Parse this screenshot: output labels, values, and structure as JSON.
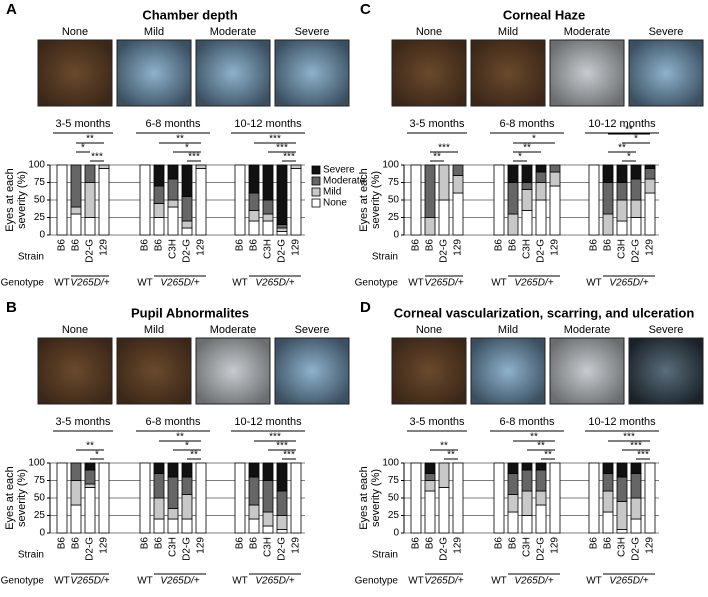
{
  "chart_data": [
    {
      "type": "stacked_bar",
      "letter": "A",
      "title": "Chamber depth",
      "photo_labels": [
        "None",
        "Mild",
        "Moderate",
        "Severe"
      ],
      "ylabel": [
        "Eyes at each",
        "severity (%)"
      ],
      "ylim": [
        0,
        100
      ],
      "yticks": [
        0,
        25,
        50,
        75,
        100
      ],
      "strain_label": "Strain",
      "genotype_label": "Genotype",
      "legend": [
        {
          "name": "Severe",
          "color": "#111111"
        },
        {
          "name": "Moderate",
          "color": "#666666"
        },
        {
          "name": "Mild",
          "color": "#c8c8c8"
        },
        {
          "name": "None",
          "color": "#ffffff"
        }
      ],
      "groups": [
        {
          "label": "3-5 months",
          "categories": [
            "B6",
            "B6",
            "D2-G",
            "129"
          ],
          "genotypes": [
            "WT",
            "V265D/+"
          ],
          "series": [
            [
              0,
              0,
              0,
              0
            ],
            [
              0,
              60,
              25,
              0
            ],
            [
              0,
              10,
              50,
              5
            ],
            [
              100,
              30,
              25,
              95
            ]
          ],
          "comparisons": [
            {
              "label": "**",
              "pair": [
                1,
                3
              ]
            },
            {
              "label": "*",
              "pair": [
                1,
                2
              ]
            },
            {
              "label": "***",
              "pair": [
                2,
                3
              ]
            }
          ]
        },
        {
          "label": "6-8 months",
          "categories": [
            "B6",
            "B6",
            "C3H",
            "D2-G",
            "129"
          ],
          "genotypes": [
            "WT",
            "V265D/+"
          ],
          "series": [
            [
              0,
              30,
              20,
              45,
              0
            ],
            [
              0,
              25,
              30,
              35,
              0
            ],
            [
              0,
              20,
              10,
              10,
              5
            ],
            [
              100,
              25,
              40,
              10,
              95
            ]
          ],
          "comparisons": [
            {
              "label": "**",
              "pair": [
                1,
                4
              ]
            },
            {
              "label": "*",
              "pair": [
                2,
                4
              ]
            },
            {
              "label": "***",
              "pair": [
                3,
                4
              ]
            }
          ]
        },
        {
          "label": "10-12 months",
          "categories": [
            "B6",
            "B6",
            "C3H",
            "D2-G",
            "129"
          ],
          "genotypes": [
            "WT",
            "V265D/+"
          ],
          "series": [
            [
              0,
              40,
              50,
              85,
              0
            ],
            [
              0,
              25,
              20,
              5,
              0
            ],
            [
              0,
              15,
              10,
              5,
              5
            ],
            [
              100,
              20,
              20,
              5,
              95
            ]
          ],
          "comparisons": [
            {
              "label": "***",
              "pair": [
                1,
                4
              ]
            },
            {
              "label": "***",
              "pair": [
                2,
                4
              ]
            },
            {
              "label": "***",
              "pair": [
                3,
                4
              ]
            }
          ]
        }
      ]
    },
    {
      "type": "stacked_bar",
      "letter": "B",
      "title": "Pupil Abnormalites",
      "photo_labels": [
        "None",
        "Mild",
        "Moderate",
        "Severe"
      ],
      "ylabel": [
        "Eyes at each",
        "severity (%)"
      ],
      "ylim": [
        0,
        100
      ],
      "yticks": [
        0,
        25,
        50,
        75,
        100
      ],
      "strain_label": "Strain",
      "genotype_label": "Genotype",
      "groups": [
        {
          "label": "3-5 months",
          "categories": [
            "B6",
            "B6",
            "D2-G",
            "129"
          ],
          "genotypes": [
            "WT",
            "V265D/+"
          ],
          "series": [
            [
              0,
              0,
              10,
              0
            ],
            [
              0,
              25,
              20,
              0
            ],
            [
              0,
              35,
              5,
              0
            ],
            [
              100,
              40,
              65,
              100
            ]
          ],
          "comparisons": [
            {
              "label": "**",
              "pair": [
                1,
                3
              ]
            },
            {
              "label": "*",
              "pair": [
                2,
                3
              ]
            }
          ]
        },
        {
          "label": "6-8 months",
          "categories": [
            "B6",
            "B6",
            "C3H",
            "D2-G",
            "129"
          ],
          "genotypes": [
            "WT",
            "V265D/+"
          ],
          "series": [
            [
              0,
              15,
              20,
              20,
              0
            ],
            [
              0,
              35,
              45,
              25,
              0
            ],
            [
              0,
              30,
              15,
              35,
              0
            ],
            [
              100,
              20,
              20,
              20,
              100
            ]
          ],
          "comparisons": [
            {
              "label": "**",
              "pair": [
                1,
                4
              ]
            },
            {
              "label": "*",
              "pair": [
                2,
                4
              ]
            },
            {
              "label": "**",
              "pair": [
                3,
                4
              ]
            }
          ]
        },
        {
          "label": "10-12 months",
          "categories": [
            "B6",
            "B6",
            "C3H",
            "D2-G",
            "129"
          ],
          "genotypes": [
            "WT",
            "V265D/+"
          ],
          "series": [
            [
              0,
              20,
              25,
              40,
              0
            ],
            [
              0,
              40,
              45,
              35,
              0
            ],
            [
              0,
              20,
              20,
              20,
              0
            ],
            [
              100,
              20,
              10,
              5,
              100
            ]
          ],
          "comparisons": [
            {
              "label": "***",
              "pair": [
                1,
                4
              ]
            },
            {
              "label": "***",
              "pair": [
                2,
                4
              ]
            },
            {
              "label": "***",
              "pair": [
                3,
                4
              ]
            }
          ]
        }
      ]
    },
    {
      "type": "stacked_bar",
      "letter": "C",
      "title": "Corneal Haze",
      "photo_labels": [
        "None",
        "Mild",
        "Moderate",
        "Severe"
      ],
      "ylabel": [
        "Eyes at each",
        "severity (%)"
      ],
      "ylim": [
        0,
        100
      ],
      "yticks": [
        0,
        25,
        50,
        75,
        100
      ],
      "strain_label": "Strain",
      "genotype_label": "Genotype",
      "groups": [
        {
          "label": "3-5 months",
          "categories": [
            "B6",
            "B6",
            "D2-G",
            "129"
          ],
          "genotypes": [
            "WT",
            "V265D/+"
          ],
          "series": [
            [
              0,
              0,
              0,
              0
            ],
            [
              0,
              75,
              0,
              15
            ],
            [
              0,
              25,
              50,
              25
            ],
            [
              100,
              0,
              50,
              60
            ]
          ],
          "comparisons": [
            {
              "label": "***",
              "pair": [
                1,
                3
              ]
            },
            {
              "label": "**",
              "pair": [
                1,
                2
              ]
            }
          ]
        },
        {
          "label": "6-8 months",
          "categories": [
            "B6",
            "B6",
            "C3H",
            "D2-G",
            "129"
          ],
          "genotypes": [
            "WT",
            "V265D/+"
          ],
          "series": [
            [
              0,
              25,
              25,
              10,
              0
            ],
            [
              0,
              45,
              10,
              15,
              10
            ],
            [
              0,
              30,
              30,
              25,
              20
            ],
            [
              100,
              0,
              35,
              50,
              70
            ]
          ],
          "comparisons": [
            {
              "label": "*",
              "pair": [
                1,
                4
              ]
            },
            {
              "label": "**",
              "pair": [
                1,
                3
              ]
            },
            {
              "label": "*",
              "pair": [
                1,
                2
              ]
            }
          ]
        },
        {
          "label": "10-12 months",
          "categories": [
            "B6",
            "B6",
            "C3H",
            "D2-G",
            "129"
          ],
          "genotypes": [
            "WT",
            "V265D/+"
          ],
          "series": [
            [
              0,
              25,
              25,
              20,
              5
            ],
            [
              0,
              45,
              25,
              30,
              15
            ],
            [
              0,
              30,
              30,
              25,
              20
            ],
            [
              100,
              0,
              20,
              25,
              60
            ]
          ],
          "comparisons": [
            {
              "label": "**",
              "pair": [
                1,
                4
              ]
            },
            {
              "label": "*",
              "pair": [
                2,
                4
              ]
            },
            {
              "label": "**",
              "pair": [
                1,
                3
              ]
            },
            {
              "label": "*",
              "pair": [
                2,
                3
              ]
            }
          ]
        }
      ]
    },
    {
      "type": "stacked_bar",
      "letter": "D",
      "title": "Corneal vascularization, scarring, and ulceration",
      "photo_labels": [
        "None",
        "Mild",
        "Moderate",
        "Severe"
      ],
      "ylabel": [
        "Eyes at each",
        "severity (%)"
      ],
      "ylim": [
        0,
        100
      ],
      "yticks": [
        0,
        25,
        50,
        75,
        100
      ],
      "strain_label": "Strain",
      "genotype_label": "Genotype",
      "groups": [
        {
          "label": "3-5 months",
          "categories": [
            "B6",
            "B6",
            "D2-G",
            "129"
          ],
          "genotypes": [
            "WT",
            "V265D/+"
          ],
          "series": [
            [
              0,
              15,
              0,
              0
            ],
            [
              0,
              10,
              0,
              0
            ],
            [
              0,
              15,
              35,
              0
            ],
            [
              100,
              60,
              65,
              100
            ]
          ],
          "comparisons": [
            {
              "label": "**",
              "pair": [
                1,
                3
              ]
            },
            {
              "label": "**",
              "pair": [
                2,
                3
              ]
            }
          ]
        },
        {
          "label": "6-8 months",
          "categories": [
            "B6",
            "B6",
            "C3H",
            "D2-G",
            "129"
          ],
          "genotypes": [
            "WT",
            "V265D/+"
          ],
          "series": [
            [
              0,
              15,
              10,
              10,
              0
            ],
            [
              0,
              30,
              30,
              30,
              0
            ],
            [
              0,
              25,
              35,
              20,
              0
            ],
            [
              100,
              30,
              25,
              40,
              100
            ]
          ],
          "comparisons": [
            {
              "label": "**",
              "pair": [
                1,
                4
              ]
            },
            {
              "label": "**",
              "pair": [
                2,
                4
              ]
            },
            {
              "label": "**",
              "pair": [
                3,
                4
              ]
            }
          ]
        },
        {
          "label": "10-12 months",
          "categories": [
            "B6",
            "B6",
            "C3H",
            "D2-G",
            "129"
          ],
          "genotypes": [
            "WT",
            "V265D/+"
          ],
          "series": [
            [
              0,
              15,
              20,
              15,
              0
            ],
            [
              0,
              25,
              35,
              35,
              0
            ],
            [
              0,
              30,
              40,
              30,
              0
            ],
            [
              100,
              30,
              5,
              20,
              100
            ]
          ],
          "comparisons": [
            {
              "label": "***",
              "pair": [
                1,
                4
              ]
            },
            {
              "label": "***",
              "pair": [
                2,
                4
              ]
            },
            {
              "label": "***",
              "pair": [
                3,
                4
              ]
            }
          ]
        }
      ]
    }
  ]
}
